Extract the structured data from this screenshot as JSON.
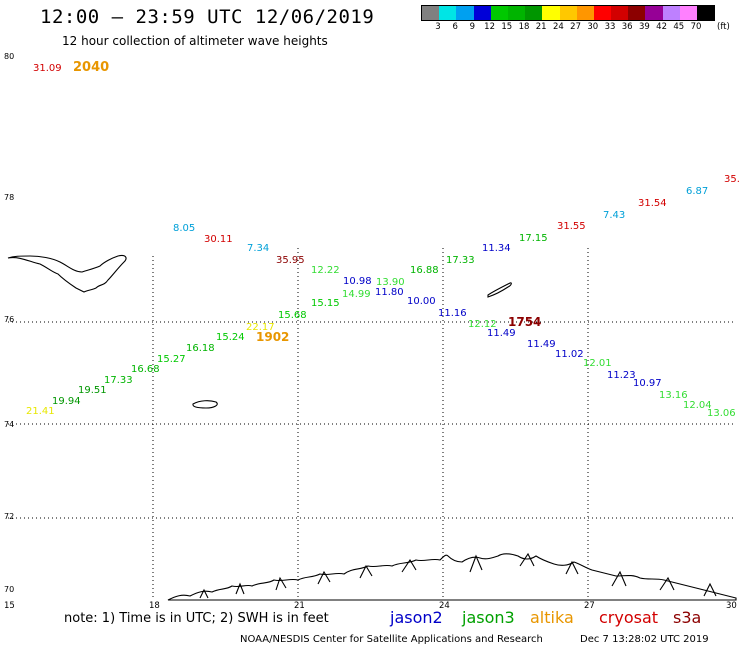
{
  "header": {
    "title": "12:00 – 23:59 UTC 12/06/2019",
    "subtitle": "12 hour collection of altimeter wave heights"
  },
  "legend": {
    "colors": [
      "#808080",
      "#00e5e5",
      "#00a0f0",
      "#0000d8",
      "#00c800",
      "#00b400",
      "#009600",
      "#ffff00",
      "#ffc800",
      "#ff9600",
      "#ff0000",
      "#d20000",
      "#8c0000",
      "#960096",
      "#be80ff",
      "#ff80ff",
      "#000000"
    ],
    "labels": [
      "3",
      "6",
      "9",
      "12",
      "15",
      "18",
      "21",
      "24",
      "27",
      "30",
      "33",
      "36",
      "39",
      "42",
      "45",
      "70"
    ],
    "unit": "(ft)"
  },
  "axes": {
    "lat_labels": [
      "80",
      "78",
      "76",
      "74",
      "72",
      "70"
    ],
    "lon_labels": [
      "15",
      "18",
      "21",
      "24",
      "27",
      "30"
    ]
  },
  "corner": {
    "value_red": "31.09",
    "time_orange": "2040"
  },
  "observations": [
    {
      "text": "21.41",
      "color": "#e8e800"
    },
    {
      "text": "19.94",
      "color": "#009600"
    },
    {
      "text": "19.51",
      "color": "#009600"
    },
    {
      "text": "17.33",
      "color": "#00b400"
    },
    {
      "text": "16.68",
      "color": "#00b400"
    },
    {
      "text": "15.27",
      "color": "#00c800"
    },
    {
      "text": "16.18",
      "color": "#00b400"
    },
    {
      "text": "15.24",
      "color": "#00c800"
    },
    {
      "text": "22.17",
      "color": "#e8e800"
    },
    {
      "text": "1902",
      "color": "#e89600"
    },
    {
      "text": "15.68",
      "color": "#00c800"
    },
    {
      "text": "15.15",
      "color": "#00c800"
    },
    {
      "text": "14.99",
      "color": "#33dd33"
    },
    {
      "text": "12.22",
      "color": "#33dd33"
    },
    {
      "text": "13.90",
      "color": "#33dd33"
    },
    {
      "text": "16.88",
      "color": "#00b400"
    },
    {
      "text": "17.33",
      "color": "#00b400"
    },
    {
      "text": "17.15",
      "color": "#00b400"
    },
    {
      "text": "12.12",
      "color": "#33dd33"
    },
    {
      "text": "12.01",
      "color": "#33dd33"
    },
    {
      "text": "13.16",
      "color": "#33dd33"
    },
    {
      "text": "12.04",
      "color": "#33dd33"
    },
    {
      "text": "13.06",
      "color": "#33dd33"
    },
    {
      "text": "10.98",
      "color": "#0000c8"
    },
    {
      "text": "11.80",
      "color": "#0000c8"
    },
    {
      "text": "10.00",
      "color": "#0000c8"
    },
    {
      "text": "11.16",
      "color": "#0000c8"
    },
    {
      "text": "11.34",
      "color": "#0000c8"
    },
    {
      "text": "11.49",
      "color": "#0000c8"
    },
    {
      "text": "11.49",
      "color": "#0000c8"
    },
    {
      "text": "11.02",
      "color": "#0000c8"
    },
    {
      "text": "11.23",
      "color": "#0000c8"
    },
    {
      "text": "10.97",
      "color": "#0000c8"
    },
    {
      "text": "8.05",
      "color": "#00a0d8"
    },
    {
      "text": "7.34",
      "color": "#00a0d8"
    },
    {
      "text": "7.43",
      "color": "#00a0d8"
    },
    {
      "text": "6.87",
      "color": "#00a0d8"
    },
    {
      "text": "30.11",
      "color": "#d20000"
    },
    {
      "text": "35.95",
      "color": "#8c0000"
    },
    {
      "text": "31.55",
      "color": "#d20000"
    },
    {
      "text": "31.54",
      "color": "#d20000"
    },
    {
      "text": "35.",
      "color": "#d20000"
    },
    {
      "text": "1754",
      "color": "#8c0000"
    }
  ],
  "footer": {
    "note": "note: 1) Time is in UTC; 2) SWH is in feet",
    "satellites": [
      {
        "name": "jason2",
        "color": "#0000c8"
      },
      {
        "name": "jason3",
        "color": "#00a000"
      },
      {
        "name": "altika",
        "color": "#e89600"
      },
      {
        "name": "cryosat",
        "color": "#d20000"
      },
      {
        "name": "s3a",
        "color": "#8c0000"
      }
    ],
    "credit": "NOAA/NESDIS Center for Satellite Applications and Research",
    "timestamp": "Dec  7 13:28:02 UTC 2019"
  }
}
